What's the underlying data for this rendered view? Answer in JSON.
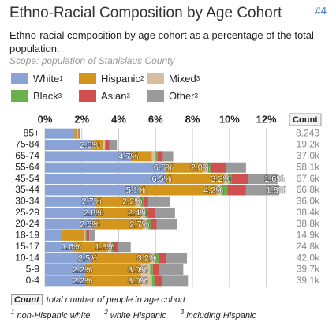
{
  "header": {
    "title": "Ethno-Racial Composition by Age Cohort",
    "link": "#4",
    "subtitle": "Ethno-racial composition by age cohort as a percentage of the total population.",
    "scope": "Scope: population of Stanislaus County"
  },
  "chart_data": {
    "type": "stacked-bar-horizontal",
    "categories": [
      "85+",
      "75-84",
      "65-74",
      "55-64",
      "45-54",
      "35-44",
      "30-34",
      "25-29",
      "20-24",
      "18-19",
      "15-17",
      "10-14",
      "5-9",
      "0-4"
    ],
    "series": [
      {
        "name": "White",
        "footnote": "1",
        "color": "#8aa3d6",
        "values": [
          1.6,
          2.6,
          4.7,
          6.6,
          6.5,
          5.1,
          2.7,
          2.8,
          2.6,
          0.9,
          1.6,
          2.5,
          2.2,
          2.2
        ],
        "value_labels": [
          null,
          "2.6%",
          "4.7%",
          "6.6%",
          "6.5%",
          "5.1%",
          "2.7%",
          "2.8%",
          "2.6%",
          null,
          "1.6%",
          "2.5%",
          "2.2%",
          "2.2%"
        ]
      },
      {
        "name": "Hispanic",
        "footnote": "2",
        "color": "#d4951c",
        "values": [
          0.15,
          0.55,
          1.1,
          2.0,
          3.2,
          4.2,
          2.2,
          2.4,
          2.7,
          1.2,
          1.8,
          3.2,
          3.0,
          3.0
        ],
        "value_labels": [
          null,
          null,
          null,
          "2.0%",
          "3.2%",
          "4.2%",
          "2.2%",
          "2.4%",
          "2.7%",
          null,
          "1.8%",
          "3.2%",
          "3.0%",
          "3.0%"
        ]
      },
      {
        "name": "Mixed",
        "footnote": "3",
        "color": "#d6bfa0",
        "values": [
          0.05,
          0.1,
          0.2,
          0.25,
          0.25,
          0.3,
          0.3,
          0.25,
          0.3,
          0.1,
          0.2,
          0.3,
          0.5,
          0.6
        ]
      },
      {
        "name": "Black",
        "footnote": "3",
        "color": "#6ab04c",
        "values": [
          0.02,
          0.05,
          0.1,
          0.15,
          0.15,
          0.3,
          0.15,
          0.15,
          0.15,
          0.05,
          0.1,
          0.2,
          0.15,
          0.15
        ]
      },
      {
        "name": "Asian",
        "footnote": "3",
        "color": "#d05050",
        "values": [
          0.05,
          0.2,
          0.3,
          0.8,
          0.9,
          1.0,
          0.25,
          0.35,
          0.3,
          0.15,
          0.25,
          0.4,
          0.35,
          0.4
        ]
      },
      {
        "name": "Other",
        "footnote": "3",
        "color": "#9a9a9a",
        "values": [
          0.05,
          0.4,
          0.55,
          1.1,
          1.6,
          1.8,
          1.2,
          1.1,
          1.1,
          0.3,
          0.7,
          1.1,
          1.3,
          1.4
        ],
        "value_labels": [
          null,
          null,
          null,
          null,
          "1.6%",
          "1.8%",
          null,
          null,
          null,
          null,
          null,
          null,
          null,
          null
        ]
      }
    ],
    "xlim": [
      0,
      13
    ],
    "xticks": [
      {
        "value": 0,
        "label": "0%"
      },
      {
        "value": 2,
        "label": "2%"
      },
      {
        "value": 4,
        "label": "4%"
      },
      {
        "value": 6,
        "label": "6%"
      },
      {
        "value": 8,
        "label": "8%"
      },
      {
        "value": 10,
        "label": "10%"
      },
      {
        "value": 12,
        "label": "12%"
      }
    ],
    "grid": true,
    "count_header": "Count",
    "counts": [
      "8,243",
      "19.2k",
      "37.0k",
      "58.1k",
      "67.6k",
      "66.8k",
      "36.0k",
      "38.4k",
      "38.8k",
      "14.9k",
      "24.8k",
      "42.0k",
      "39.7k",
      "39.1k"
    ]
  },
  "footer": {
    "count_key": "Count",
    "count_text": "total number of people in age cohort",
    "notes": [
      {
        "mark": "1",
        "text": "non-Hispanic white"
      },
      {
        "mark": "2",
        "text": "white Hispanic"
      },
      {
        "mark": "3",
        "text": "including Hispanic"
      }
    ]
  }
}
